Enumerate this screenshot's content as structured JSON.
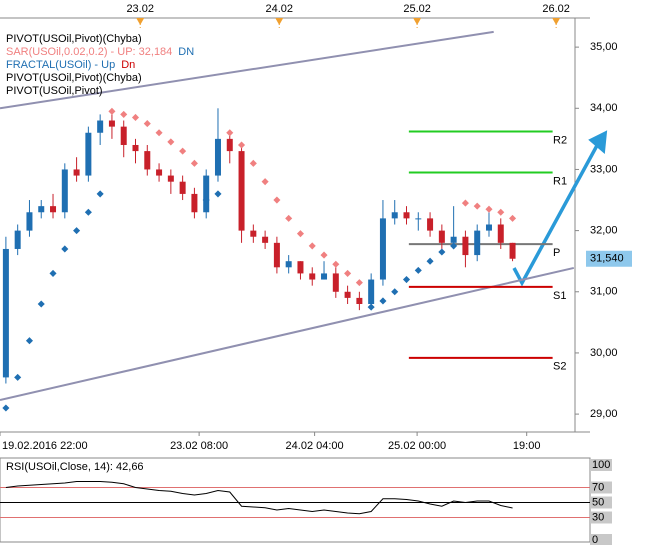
{
  "chart_data": [
    {
      "type": "candlestick",
      "legend": [
        {
          "text": "PIVOT(USOil,Pivot)(Chyba)",
          "color": "#000000"
        },
        {
          "text": "SAR(USOil,0.02,0.2) - UP: 32,184",
          "color": "#f08080",
          "extra": "DN",
          "extra_color": "#1f6fb2"
        },
        {
          "text": "FRACTAL(USOil) - Up",
          "color": "#1f6fb2",
          "extra": "Dn",
          "extra_color": "#cc0000"
        },
        {
          "text": "PIVOT(USOil,Pivot)(Chyba)",
          "color": "#000000"
        },
        {
          "text": "PIVOT(USOil,Pivot)",
          "color": "#000000"
        }
      ],
      "up_color": "#1f6fb2",
      "down_color": "#c8202a",
      "open": [
        29.6,
        31.7,
        32.0,
        32.3,
        32.4,
        32.3,
        33.0,
        32.9,
        33.6,
        33.8,
        33.7,
        33.4,
        33.3,
        33.0,
        32.9,
        32.8,
        32.6,
        32.3,
        32.9,
        33.5,
        33.3,
        32.0,
        31.9,
        31.8,
        31.4,
        31.5,
        31.3,
        31.2,
        31.3,
        31.0,
        30.9,
        30.8,
        31.2,
        32.2,
        32.3,
        32.2,
        32.2,
        32.0,
        31.8,
        31.9,
        31.6,
        32.0,
        32.1,
        31.8
      ],
      "high": [
        31.9,
        32.1,
        32.5,
        32.5,
        32.6,
        33.1,
        33.2,
        33.7,
        33.9,
        33.9,
        33.8,
        33.5,
        33.4,
        33.1,
        33.0,
        32.9,
        32.7,
        33.0,
        34.0,
        33.6,
        33.4,
        32.1,
        32.0,
        31.9,
        31.6,
        31.5,
        31.4,
        31.5,
        31.4,
        31.1,
        31.0,
        31.3,
        32.5,
        32.5,
        32.4,
        32.3,
        32.3,
        32.1,
        32.4,
        32.0,
        32.1,
        32.3,
        32.2,
        31.8
      ],
      "low": [
        29.5,
        31.6,
        31.9,
        32.2,
        32.2,
        32.2,
        32.8,
        32.8,
        33.4,
        33.5,
        33.2,
        33.1,
        32.9,
        32.8,
        32.6,
        32.5,
        32.2,
        32.2,
        32.8,
        33.1,
        31.8,
        31.8,
        31.7,
        31.3,
        31.3,
        31.2,
        31.1,
        31.2,
        30.9,
        30.8,
        30.7,
        30.7,
        31.1,
        32.1,
        32.1,
        32.0,
        31.9,
        31.7,
        31.8,
        31.4,
        31.5,
        31.9,
        31.7,
        31.5
      ],
      "close": [
        31.7,
        32.0,
        32.3,
        32.4,
        32.3,
        33.0,
        32.9,
        33.6,
        33.8,
        33.7,
        33.4,
        33.3,
        33.0,
        32.9,
        32.8,
        32.6,
        32.3,
        32.9,
        33.5,
        33.3,
        32.0,
        31.9,
        31.8,
        31.4,
        31.5,
        31.3,
        31.2,
        31.3,
        31.0,
        30.9,
        30.8,
        31.2,
        32.2,
        32.3,
        32.2,
        32.2,
        32.0,
        31.8,
        31.9,
        31.6,
        32.0,
        32.1,
        31.8,
        31.54
      ],
      "sar": [
        29.1,
        29.6,
        30.2,
        30.8,
        31.3,
        31.7,
        32.0,
        32.3,
        32.6,
        33.95,
        33.9,
        33.85,
        33.75,
        33.6,
        33.45,
        33.3,
        33.1,
        32.5,
        32.6,
        33.6,
        33.4,
        33.1,
        32.8,
        32.5,
        32.2,
        31.95,
        31.75,
        31.6,
        31.45,
        31.3,
        31.15,
        30.75,
        30.85,
        31.0,
        31.2,
        31.35,
        31.5,
        31.65,
        31.75,
        32.45,
        32.4,
        32.35,
        32.3,
        32.2
      ],
      "sar_above_color": "#f08080",
      "sar_below_color": "#1f6fb2",
      "pivots": [
        {
          "label": "R2",
          "value": 33.62,
          "color": "#22cc22"
        },
        {
          "label": "R1",
          "value": 32.95,
          "color": "#22cc22"
        },
        {
          "label": "P",
          "value": 31.78,
          "color": "#777777"
        },
        {
          "label": "S1",
          "value": 31.08,
          "color": "#cc0000"
        },
        {
          "label": "S2",
          "value": 29.92,
          "color": "#cc0000"
        }
      ],
      "pivot_span": [
        34.2,
        46.4
      ],
      "trendlines": [
        {
          "x": [
            -0.5,
            41.4
          ],
          "y": [
            34.0,
            35.25
          ]
        },
        {
          "x": [
            -0.5,
            48.2
          ],
          "y": [
            29.23,
            31.39
          ]
        }
      ],
      "trend_color": "#9090b0",
      "last_price": {
        "value": 31.54,
        "label": "31,540"
      },
      "xlim": [
        -0.5,
        48.3
      ],
      "ylim": [
        28.74,
        35.28
      ],
      "yticks": [
        {
          "value": 29,
          "label": "29,00"
        },
        {
          "value": 30,
          "label": "30,00"
        },
        {
          "value": 31,
          "label": "31,00"
        },
        {
          "value": 32,
          "label": "32,00"
        },
        {
          "value": 33,
          "label": "33,00"
        },
        {
          "value": 34,
          "label": "34,00"
        },
        {
          "value": 35,
          "label": "35,00"
        }
      ],
      "xticks": [
        {
          "value": -0.5,
          "label": "19.02.2016 22:00"
        },
        {
          "value": 16.4,
          "label": "23.02 08:00"
        },
        {
          "value": 26.2,
          "label": "24.02 04:00"
        },
        {
          "value": 34.9,
          "label": "25.02 00:00"
        },
        {
          "value": 44.2,
          "label": "19:00"
        }
      ],
      "date_markers": [
        {
          "value": 11.4,
          "label": "23.02"
        },
        {
          "value": 23.2,
          "label": "24.02"
        },
        {
          "value": 34.9,
          "label": "25.02"
        },
        {
          "value": 46.7,
          "label": "26.02"
        }
      ]
    },
    {
      "type": "line",
      "title": "RSI(USOil,Close, 14): 42,66",
      "color": "#000000",
      "values": [
        70,
        72,
        73,
        74,
        75,
        76,
        78,
        78,
        78,
        77,
        75,
        70,
        68,
        66,
        65,
        62,
        60,
        62,
        66,
        64,
        45,
        44,
        43,
        40,
        42,
        40,
        38,
        40,
        38,
        36,
        35,
        38,
        55,
        55,
        54,
        52,
        48,
        45,
        52,
        50,
        52,
        52,
        46,
        42.66
      ],
      "ylim": [
        0,
        100
      ],
      "yticks": [
        0,
        30,
        50,
        70,
        100
      ],
      "levels": [
        {
          "value": 70,
          "color": "#e07070"
        },
        {
          "value": 50,
          "color": "#000000"
        },
        {
          "value": 30,
          "color": "#e07070"
        }
      ]
    }
  ]
}
